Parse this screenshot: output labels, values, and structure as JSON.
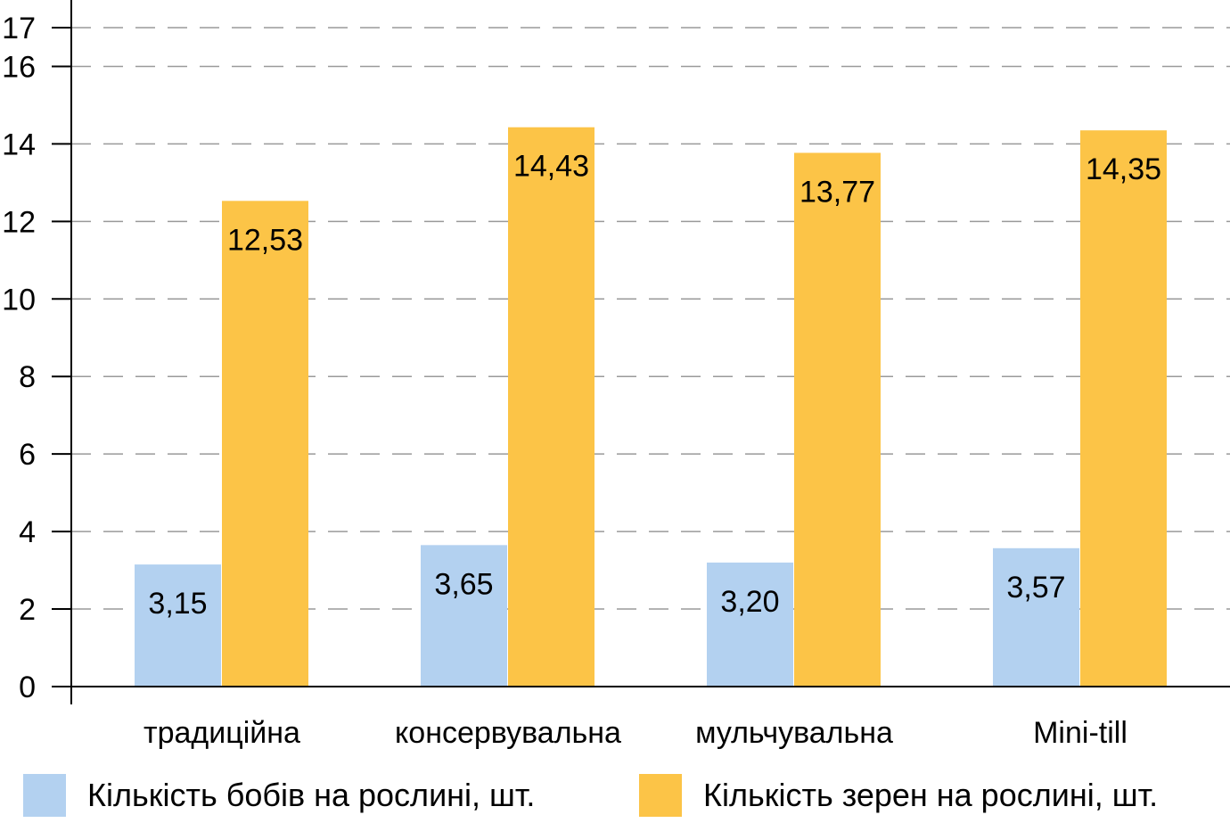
{
  "chart_data": {
    "type": "bar",
    "title": "",
    "xlabel": "",
    "ylabel": "",
    "categories": [
      "традиційна",
      "консервувальна",
      "мульчувальна",
      "Mini-till"
    ],
    "series": [
      {
        "name": "Кількість бобів на рослині, шт.",
        "values": [
          3.15,
          3.65,
          3.2,
          3.57
        ],
        "labels": [
          "3,15",
          "3,65",
          "3,20",
          "3,57"
        ],
        "color": "#b3d1f0"
      },
      {
        "name": "Кількість зерен на рослині, шт.",
        "values": [
          12.53,
          14.43,
          13.77,
          14.35
        ],
        "labels": [
          "12,53",
          "14,43",
          "13,77",
          "14,35"
        ],
        "color": "#fcc447"
      }
    ],
    "ylim": [
      0,
      17
    ],
    "yticks": [
      0,
      2,
      4,
      6,
      8,
      10,
      12,
      14,
      16,
      17
    ],
    "grid": true,
    "legend_position": "bottom"
  }
}
